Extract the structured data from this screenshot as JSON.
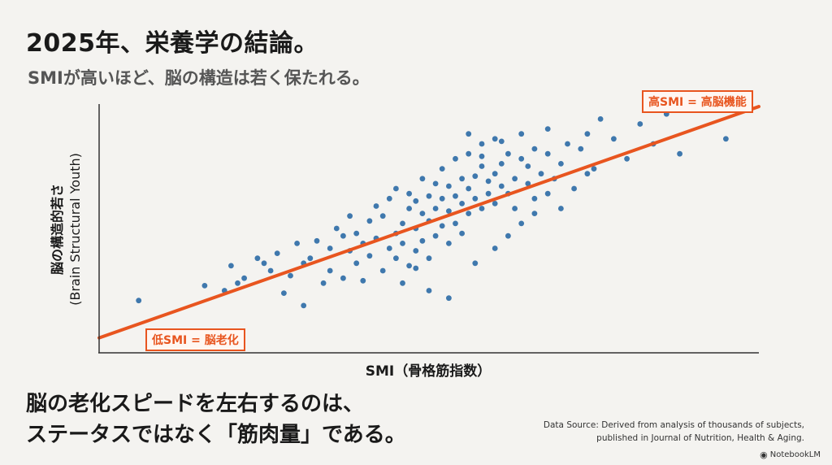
{
  "header": {
    "title": "2025年、栄養学の結論。",
    "subtitle": "SMIが高いほど、脳の構造は若く保たれる。"
  },
  "chart_data": {
    "type": "scatter",
    "title": "",
    "xlabel": "SMI（骨格筋指数）",
    "ylabel_ja": "脳の構造的若さ",
    "ylabel_en": "(Brain Structural Youth)",
    "xlim": [
      0,
      100
    ],
    "ylim": [
      0,
      100
    ],
    "point_color": "#3f78ad",
    "trend_color": "#e8551f",
    "trend": {
      "x": [
        0,
        100
      ],
      "y": [
        6,
        99
      ]
    },
    "points_note": "",
    "points": {
      "x": [
        6,
        16,
        19,
        20,
        21,
        22,
        24,
        25,
        26,
        27,
        28,
        29,
        30,
        31,
        31,
        32,
        33,
        34,
        35,
        35,
        36,
        37,
        37,
        38,
        38,
        39,
        39,
        40,
        40,
        41,
        41,
        42,
        42,
        43,
        43,
        44,
        44,
        45,
        45,
        45,
        46,
        46,
        47,
        47,
        47,
        48,
        48,
        48,
        49,
        49,
        49,
        50,
        50,
        50,
        51,
        51,
        51,
        52,
        52,
        52,
        53,
        53,
        53,
        54,
        54,
        54,
        55,
        55,
        55,
        56,
        56,
        56,
        57,
        57,
        58,
        58,
        58,
        59,
        59,
        60,
        60,
        60,
        61,
        61,
        62,
        62,
        63,
        63,
        64,
        64,
        65,
        65,
        66,
        66,
        67,
        68,
        68,
        69,
        70,
        71,
        72,
        73,
        74,
        75,
        76,
        78,
        80,
        82,
        84,
        86,
        88,
        95,
        46,
        50,
        53,
        57,
        60,
        62,
        64,
        66,
        58,
        61,
        68,
        74,
        48,
        56,
        70
      ],
      "y": [
        21,
        27,
        25,
        35,
        28,
        30,
        38,
        36,
        33,
        40,
        24,
        31,
        44,
        36,
        19,
        38,
        45,
        28,
        42,
        33,
        50,
        30,
        47,
        41,
        55,
        36,
        48,
        44,
        29,
        53,
        39,
        59,
        46,
        33,
        55,
        42,
        62,
        48,
        38,
        66,
        52,
        44,
        58,
        35,
        64,
        50,
        61,
        41,
        56,
        45,
        70,
        53,
        63,
        38,
        58,
        47,
        68,
        62,
        51,
        74,
        57,
        44,
        67,
        63,
        52,
        78,
        60,
        70,
        48,
        66,
        56,
        80,
        62,
        71,
        58,
        75,
        84,
        64,
        69,
        60,
        72,
        86,
        67,
        76,
        64,
        80,
        70,
        58,
        78,
        88,
        68,
        75,
        82,
        62,
        72,
        80,
        90,
        70,
        76,
        84,
        66,
        82,
        88,
        74,
        94,
        86,
        78,
        92,
        84,
        96,
        80,
        86,
        28,
        25,
        22,
        36,
        42,
        47,
        52,
        56,
        79,
        85,
        64,
        72,
        34,
        88,
        58
      ]
    }
  },
  "annotations": {
    "high": "高SMI = 高脳機能",
    "low": "低SMI = 脳老化"
  },
  "conclusion": {
    "line1": "脳の老化スピードを左右するのは、",
    "line2": "ステータスではなく「筋肉量」である。"
  },
  "source": {
    "line1": "Data Source: Derived from analysis of thousands of subjects,",
    "line2": "published in Journal of Nutrition, Health & Aging."
  },
  "brand": {
    "name": "NotebookLM",
    "icon": "notebooklm-logo-icon"
  }
}
